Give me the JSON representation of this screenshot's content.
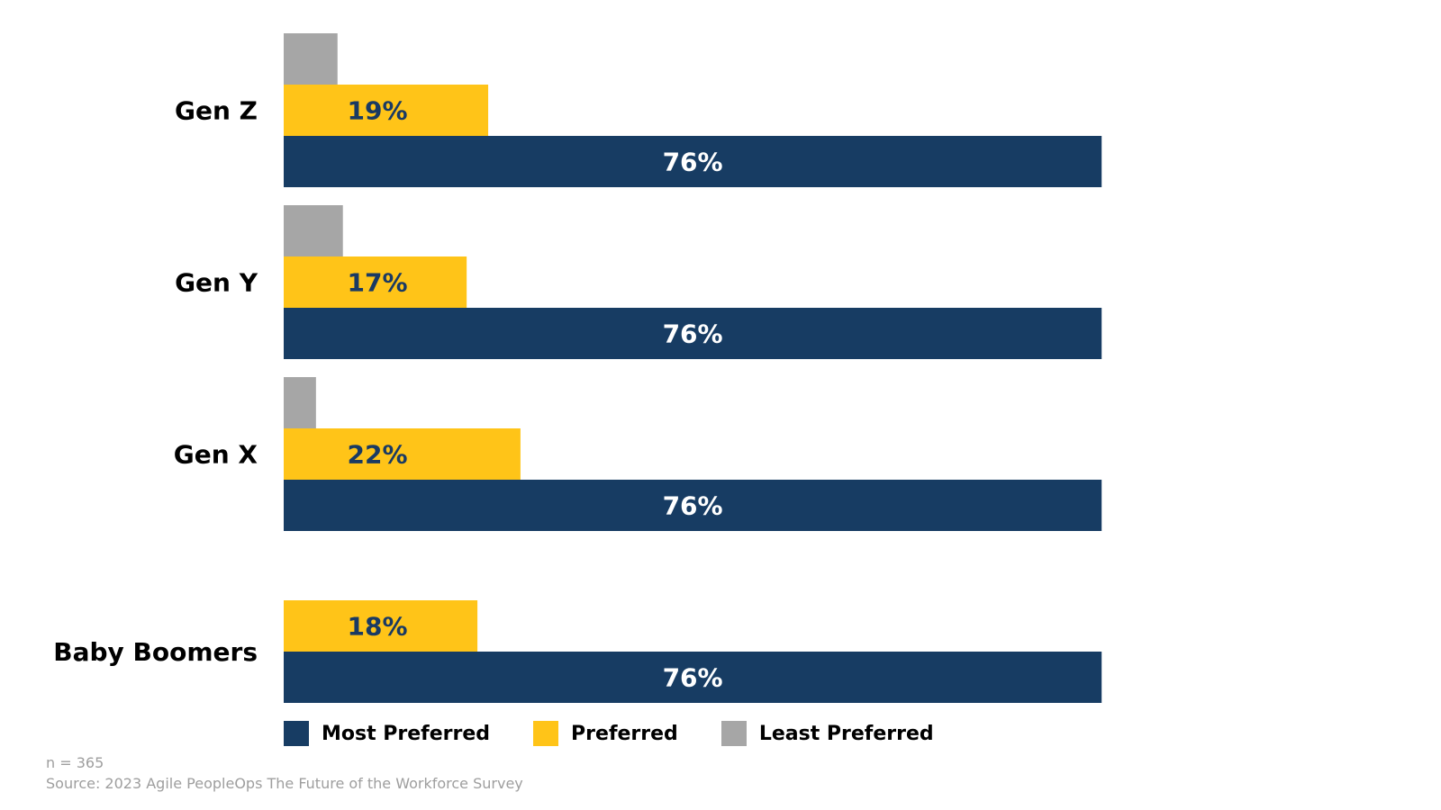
{
  "chart_data": {
    "type": "bar",
    "orientation": "horizontal",
    "categories": [
      "Gen Z",
      "Gen Y",
      "Gen X",
      "Baby Boomers"
    ],
    "series": [
      {
        "name": "Least Preferred",
        "values": [
          5,
          5.5,
          3,
          null
        ],
        "color": "#a6a6a6",
        "label_color": "#1a3a63",
        "show_labels": false
      },
      {
        "name": "Preferred",
        "values": [
          19,
          17,
          22,
          18
        ],
        "color": "#ffc418",
        "label_color": "#1a3a63",
        "show_labels": true
      },
      {
        "name": "Most Preferred",
        "values": [
          76,
          76,
          76,
          76
        ],
        "color": "#173c63",
        "label_color": "#ffffff",
        "show_labels": true
      }
    ],
    "value_suffix": "%",
    "xlim": [
      0,
      100
    ],
    "grid": false,
    "legend": "bottom-left"
  },
  "legend": {
    "items": [
      {
        "label": "Most Preferred",
        "color": "#173c63"
      },
      {
        "label": "Preferred",
        "color": "#ffc418"
      },
      {
        "label": "Least Preferred",
        "color": "#a6a6a6"
      }
    ]
  },
  "footnotes": {
    "n": "n = 365",
    "source": "Source: 2023 Agile PeopleOps The Future of the Workforce Survey"
  }
}
